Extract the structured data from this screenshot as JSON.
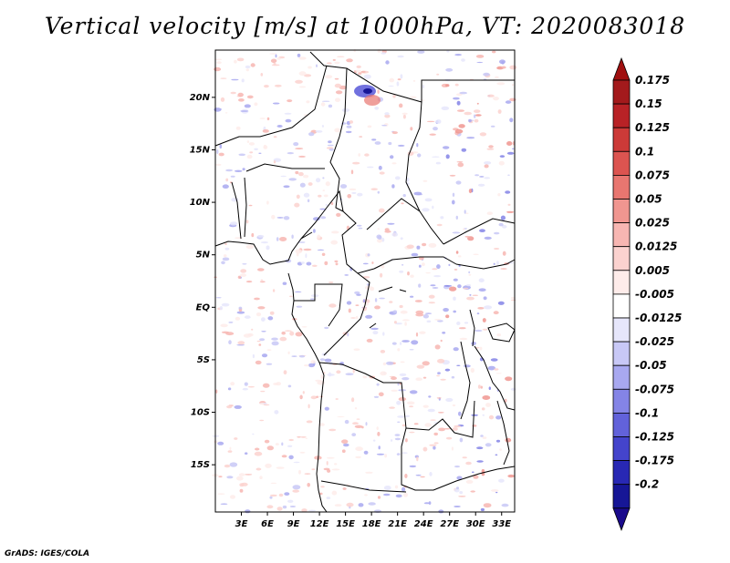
{
  "title": "Vertical velocity [m/s] at 1000hPa, VT: 2020083018",
  "footer": "GrADS: IGES/COLA",
  "map": {
    "region": "Central Africa",
    "lat_range": [
      -19.5,
      24.5
    ],
    "lon_range": [
      0,
      34.5
    ],
    "lat_ticks": [
      {
        "value": 20,
        "label": "20N"
      },
      {
        "value": 15,
        "label": "15N"
      },
      {
        "value": 10,
        "label": "10N"
      },
      {
        "value": 5,
        "label": "5N"
      },
      {
        "value": 0,
        "label": "EQ"
      },
      {
        "value": -5,
        "label": "5S"
      },
      {
        "value": -10,
        "label": "10S"
      },
      {
        "value": -15,
        "label": "15S"
      }
    ],
    "lon_ticks": [
      {
        "value": 3,
        "label": "3E"
      },
      {
        "value": 6,
        "label": "6E"
      },
      {
        "value": 9,
        "label": "9E"
      },
      {
        "value": 12,
        "label": "12E"
      },
      {
        "value": 15,
        "label": "15E"
      },
      {
        "value": 18,
        "label": "18E"
      },
      {
        "value": 21,
        "label": "21E"
      },
      {
        "value": 24,
        "label": "24E"
      },
      {
        "value": 27,
        "label": "27E"
      },
      {
        "value": 30,
        "label": "30E"
      },
      {
        "value": 33,
        "label": "33E"
      }
    ]
  },
  "colorbar": {
    "levels": [
      {
        "label": "0.175",
        "color": "#a31a1c"
      },
      {
        "label": "0.15",
        "color": "#b82226"
      },
      {
        "label": "0.125",
        "color": "#cc3a38"
      },
      {
        "label": "0.1",
        "color": "#dc5450"
      },
      {
        "label": "0.075",
        "color": "#e87670"
      },
      {
        "label": "0.05",
        "color": "#f09690"
      },
      {
        "label": "0.025",
        "color": "#f7b6b2"
      },
      {
        "label": "0.0125",
        "color": "#fbd2cf"
      },
      {
        "label": "0.005",
        "color": "#feecea"
      },
      {
        "label": "-0.005",
        "color": "#ffffff"
      },
      {
        "label": "-0.0125",
        "color": "#e6e6fb"
      },
      {
        "label": "-0.025",
        "color": "#c8c8f6"
      },
      {
        "label": "-0.05",
        "color": "#a8a8f0"
      },
      {
        "label": "-0.075",
        "color": "#8484e6"
      },
      {
        "label": "-0.1",
        "color": "#6262da"
      },
      {
        "label": "-0.125",
        "color": "#4444cc"
      },
      {
        "label": "-0.175",
        "color": "#2828b4"
      },
      {
        "label": "-0.2",
        "color": "#161696"
      }
    ],
    "top_color": "#a01010",
    "bottom_color": "#1a0a8c"
  }
}
